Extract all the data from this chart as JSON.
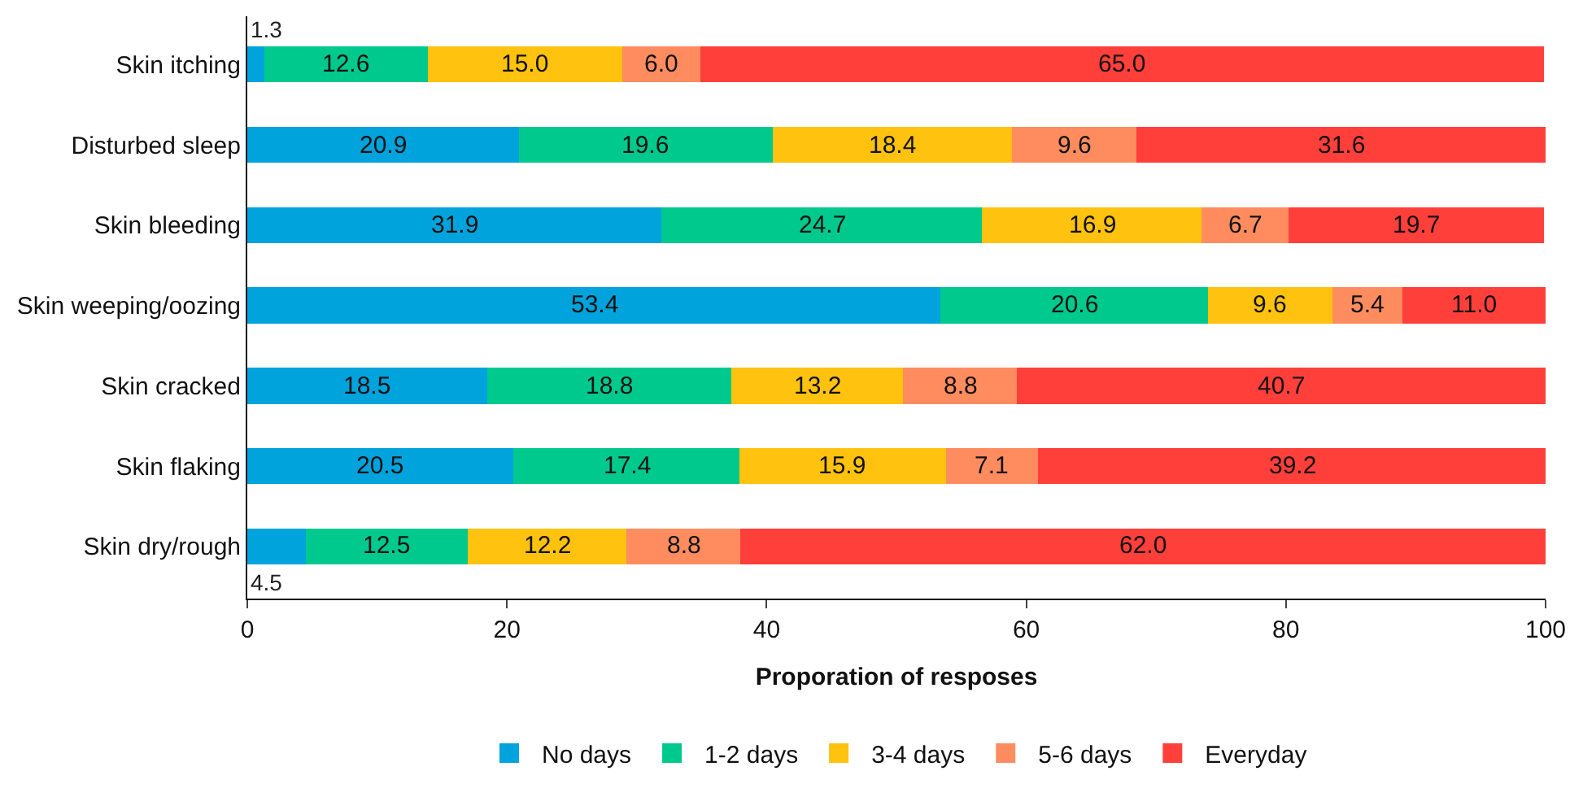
{
  "chart_data": {
    "type": "bar",
    "orientation": "horizontal",
    "stacked": true,
    "xlabel": "Proporation of resposes",
    "categories": [
      "Skin itching",
      "Disturbed sleep",
      "Skin bleeding",
      "Skin weeping/oozing",
      "Skin cracked",
      "Skin flaking",
      "Skin dry/rough"
    ],
    "series": [
      {
        "name": "No days",
        "color": "#00a3dc",
        "values": [
          1.3,
          20.9,
          31.9,
          53.4,
          18.5,
          20.5,
          4.5
        ],
        "value_labels": [
          "1.3",
          "20.9",
          "31.9",
          "53.4",
          "18.5",
          "20.5",
          "4.5"
        ]
      },
      {
        "name": "1-2 days",
        "color": "#00c98d",
        "values": [
          12.6,
          19.6,
          24.7,
          20.6,
          18.8,
          17.4,
          12.5
        ],
        "value_labels": [
          "12.6",
          "19.6",
          "24.7",
          "20.6",
          "18.8",
          "17.4",
          "12.5"
        ]
      },
      {
        "name": "3-4 days",
        "color": "#ffc20e",
        "values": [
          15.0,
          18.4,
          16.9,
          9.6,
          13.2,
          15.9,
          12.2
        ],
        "value_labels": [
          "15.0",
          "18.4",
          "16.9",
          "9.6",
          "13.2",
          "15.9",
          "12.2"
        ]
      },
      {
        "name": "5-6 days",
        "color": "#ff8c5f",
        "values": [
          6.0,
          9.6,
          6.7,
          5.4,
          8.8,
          7.1,
          8.8
        ],
        "value_labels": [
          "6.0",
          "9.6",
          "6.7",
          "5.4",
          "8.8",
          "7.1",
          "8.8"
        ]
      },
      {
        "name": "Everyday",
        "color": "#ff3f3a",
        "values": [
          65.0,
          31.6,
          19.7,
          11.0,
          40.7,
          39.2,
          62.0
        ],
        "value_labels": [
          "65.0",
          "31.6",
          "19.7",
          "11.0",
          "40.7",
          "39.2",
          "62.0"
        ]
      }
    ],
    "xlim": [
      0,
      100
    ],
    "xticks": [
      0,
      20,
      40,
      60,
      80,
      100
    ],
    "legend": "bottom"
  }
}
